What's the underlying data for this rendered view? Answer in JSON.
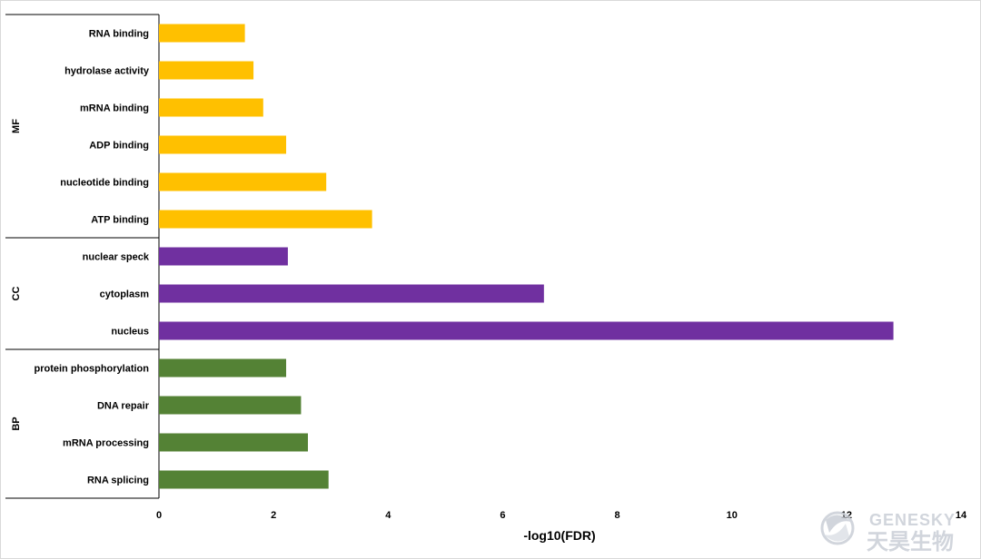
{
  "chart_data": {
    "type": "bar",
    "orientation": "horizontal",
    "xlabel": "-log10(FDR)",
    "xlim": [
      0,
      14
    ],
    "xticks": [
      0,
      2,
      4,
      6,
      8,
      10,
      12,
      14
    ],
    "grid": false,
    "legend": "none",
    "groups": [
      {
        "name": "MF",
        "color": "#FFC000",
        "categories": [
          "RNA binding",
          "hydrolase activity",
          "mRNA binding",
          "ADP binding",
          "nucleotide binding",
          "ATP binding"
        ],
        "values": [
          1.5,
          1.65,
          1.82,
          2.22,
          2.92,
          3.72
        ]
      },
      {
        "name": "CC",
        "color": "#7030A0",
        "categories": [
          "nuclear speck",
          "cytoplasm",
          "nucleus"
        ],
        "values": [
          2.25,
          6.72,
          12.82
        ]
      },
      {
        "name": "BP",
        "color": "#548235",
        "categories": [
          "protein phosphorylation",
          "DNA repair",
          "mRNA processing",
          "RNA splicing"
        ],
        "values": [
          2.22,
          2.48,
          2.6,
          2.96
        ]
      }
    ]
  },
  "watermark": {
    "brand_en": "GENESKY",
    "brand_cn": "天昊生物",
    "color": "#C9CED6"
  }
}
